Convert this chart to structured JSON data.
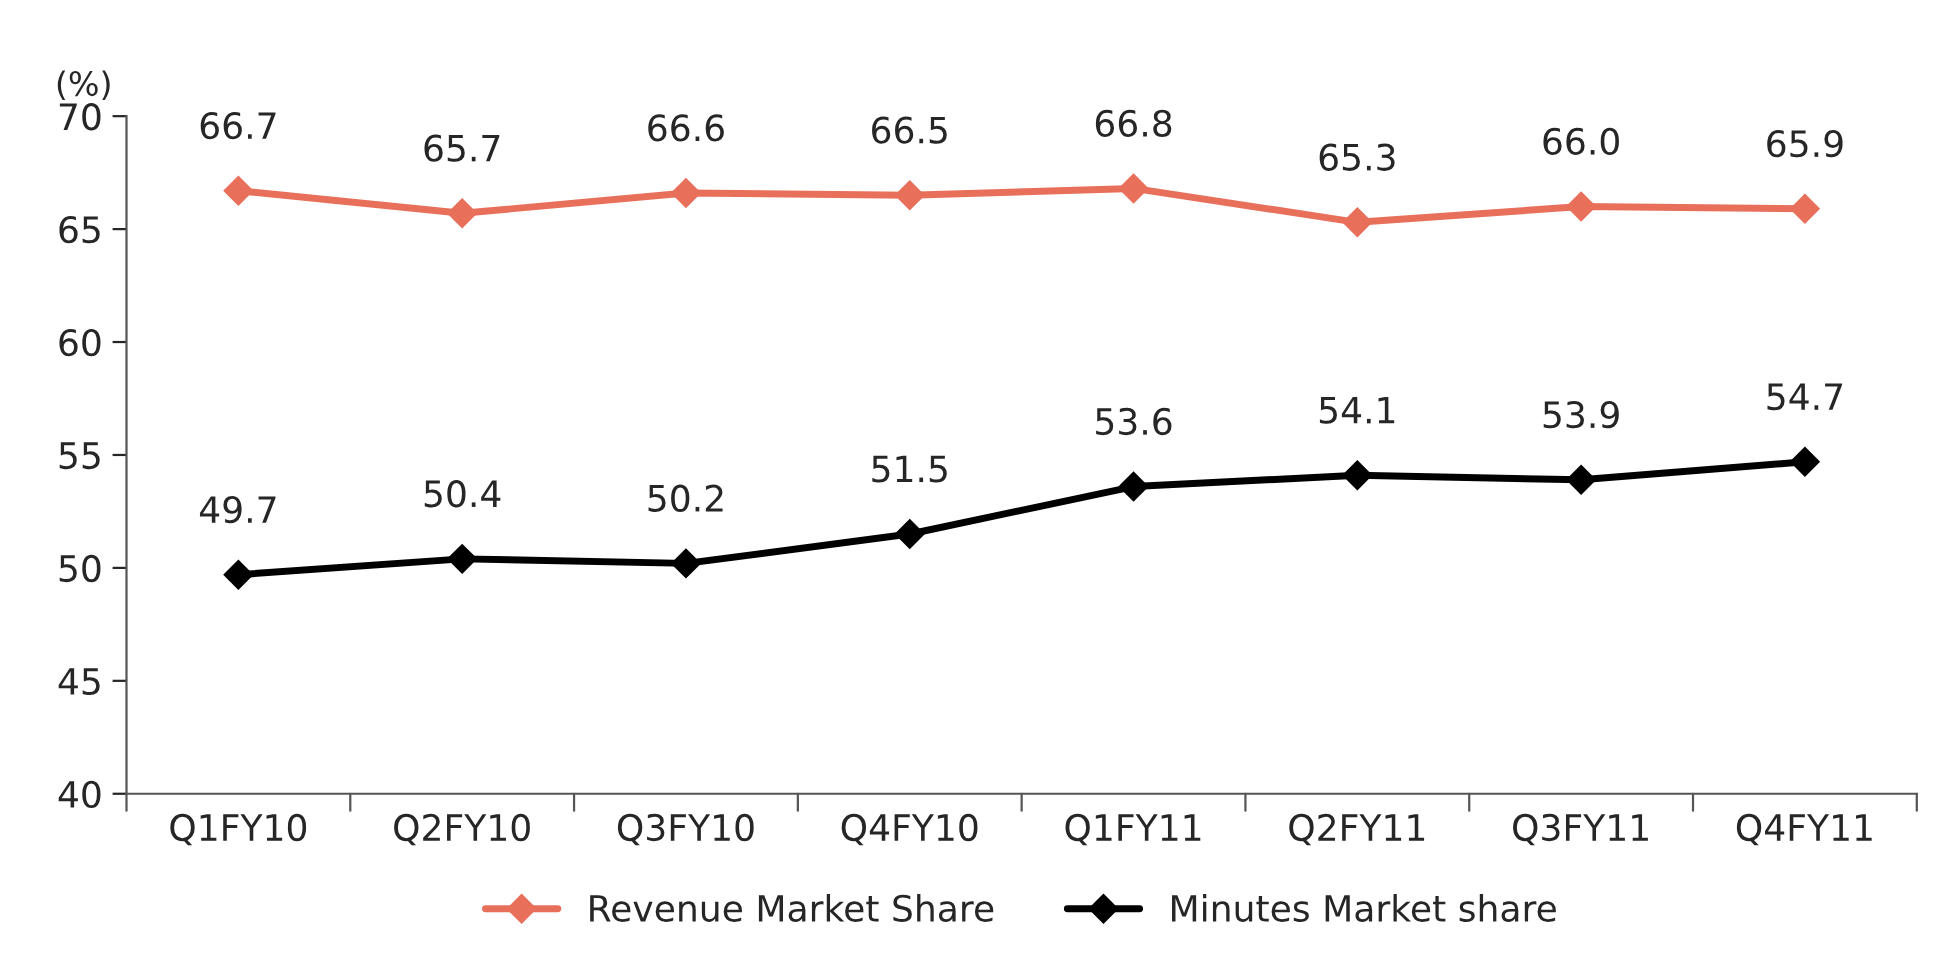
{
  "chart_data": {
    "type": "line",
    "ylabel": "(%)",
    "categories": [
      "Q1FY10",
      "Q2FY10",
      "Q3FY10",
      "Q4FY10",
      "Q1FY11",
      "Q2FY11",
      "Q3FY11",
      "Q4FY11"
    ],
    "series": [
      {
        "name": "Revenue Market Share",
        "color": "#e8705a",
        "values": [
          66.7,
          65.7,
          66.6,
          66.5,
          66.8,
          65.3,
          66.0,
          65.9
        ],
        "value_labels": [
          "66.7",
          "65.7",
          "66.6",
          "66.5",
          "66.8",
          "65.3",
          "66.0",
          "65.9"
        ]
      },
      {
        "name": "Minutes Market share",
        "color": "#000000",
        "values": [
          49.7,
          50.4,
          50.2,
          51.5,
          53.6,
          54.1,
          53.9,
          54.7
        ],
        "value_labels": [
          "49.7",
          "50.4",
          "50.2",
          "51.5",
          "53.6",
          "54.1",
          "53.9",
          "54.7"
        ]
      }
    ],
    "ylim": [
      40,
      70
    ],
    "yticks": [
      40,
      45,
      50,
      55,
      60,
      65,
      70
    ],
    "grid": false,
    "legend": "bottom",
    "marker": "diamond",
    "line_style": "solid"
  }
}
